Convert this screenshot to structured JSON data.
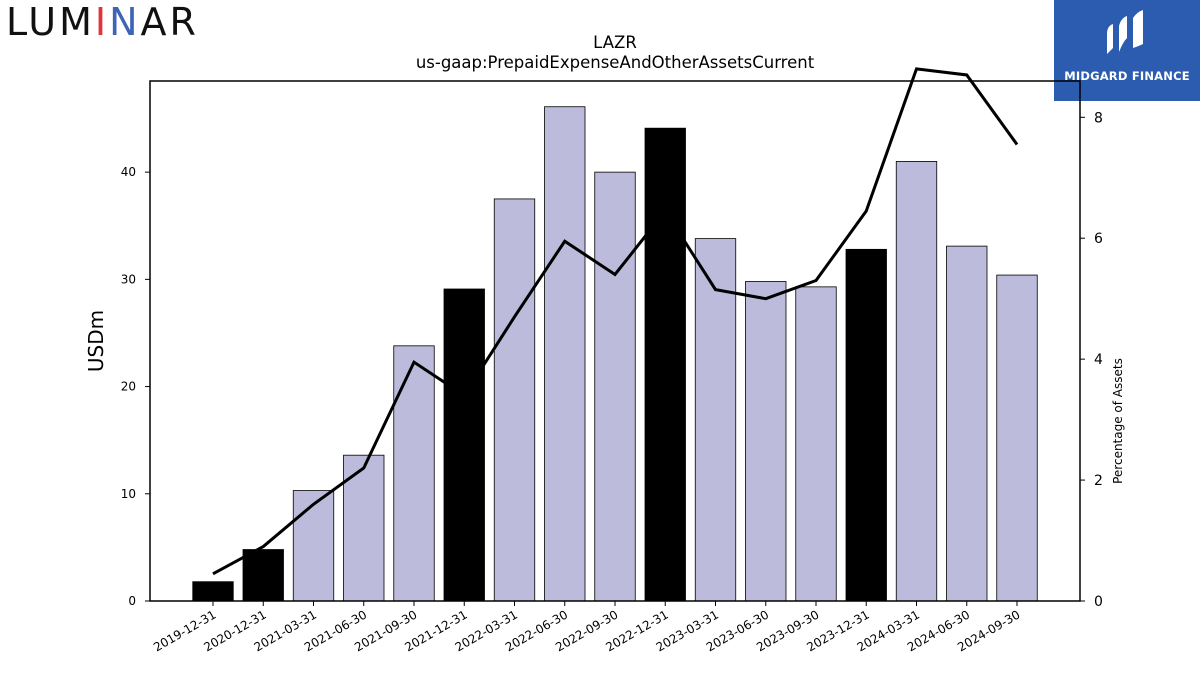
{
  "logos": {
    "left_brand_letters": [
      "LUM",
      "I",
      "N",
      "AR"
    ],
    "right_brand_text": "MIDGARD FINANCE"
  },
  "chart_data": {
    "type": "bar+line",
    "title": "LAZR",
    "subtitle": "us-gaap:PrepaidExpenseAndOtherAssetsCurrent",
    "ylabel": "USDm",
    "y2label": "Percentage of Assets",
    "ylim": [
      0,
      48.5
    ],
    "y2lim": [
      0,
      8.6
    ],
    "yticks": [
      0,
      10,
      20,
      30,
      40
    ],
    "y2ticks": [
      0,
      2,
      4,
      6,
      8
    ],
    "grid": false,
    "categories": [
      "2019-12-31",
      "2020-12-31",
      "2021-03-31",
      "2021-06-30",
      "2021-09-30",
      "2021-12-31",
      "2022-03-31",
      "2022-06-30",
      "2022-09-30",
      "2022-12-31",
      "2023-03-31",
      "2023-06-30",
      "2023-09-30",
      "2023-12-31",
      "2024-03-31",
      "2024-06-30",
      "2024-09-30"
    ],
    "bars": [
      1.8,
      4.8,
      10.3,
      13.6,
      23.8,
      29.1,
      37.5,
      46.1,
      40.0,
      44.1,
      33.8,
      29.8,
      29.3,
      32.8,
      41.0,
      33.1,
      30.4
    ],
    "bar_highlight": [
      true,
      true,
      false,
      false,
      false,
      true,
      false,
      false,
      false,
      true,
      false,
      false,
      false,
      true,
      false,
      false,
      false
    ],
    "line_percent": [
      0.45,
      0.9,
      1.6,
      2.2,
      3.95,
      3.4,
      4.7,
      5.95,
      5.4,
      6.45,
      5.15,
      5.0,
      5.3,
      6.45,
      8.8,
      8.7,
      7.55
    ],
    "colors": {
      "bar_normal": "#bdbbdb",
      "bar_highlight": "#000000",
      "line": "#000000"
    }
  }
}
